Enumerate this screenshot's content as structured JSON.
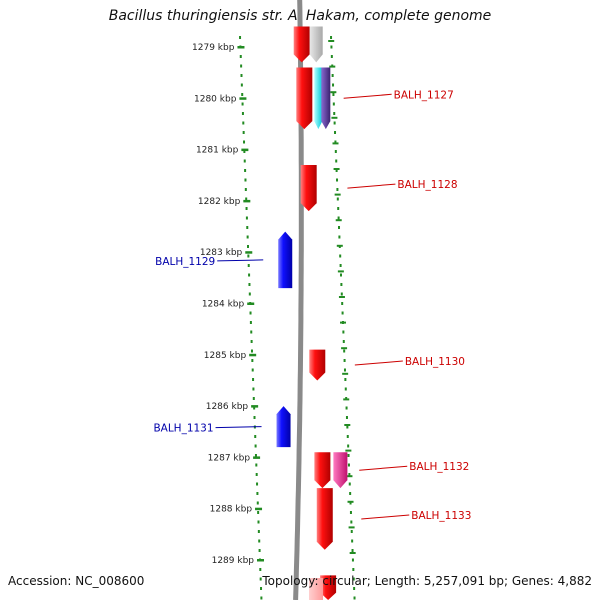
{
  "title": "Bacillus thuringiensis str. Al Hakam, complete genome",
  "footer": {
    "accession": "Accession: NC_008600",
    "stats": "Topology: circular; Length: 5,257,091 bp; Genes: 4,882"
  },
  "colors": {
    "forward_cds": "#ff0000",
    "reverse_cds": "#0000ff",
    "backbone": "#888888",
    "scale_dots": "#228b22",
    "label_forward": "#cc0000",
    "label_reverse": "#0000aa",
    "cyan_feature": "#00e5ee",
    "purple_feature": "#5a3a9a",
    "magenta_feature": "#e6198c",
    "gray_feature": "#c0c0c0"
  },
  "chart_data": {
    "type": "genome_map",
    "unit": "kbp",
    "ticks": [
      1279,
      1280,
      1281,
      1282,
      1283,
      1284,
      1285,
      1286,
      1287,
      1288,
      1289
    ],
    "tick_labels": [
      "1279 kbp",
      "1280 kbp",
      "1281 kbp",
      "1282 kbp",
      "1283 kbp",
      "1284 kbp",
      "1285 kbp",
      "1286 kbp",
      "1287 kbp",
      "1288 kbp",
      "1289 kbp"
    ],
    "genes": [
      {
        "name": "",
        "strand": "+",
        "start": 1278.6,
        "end": 1279.3,
        "color": "red"
      },
      {
        "name": "",
        "strand": "+",
        "start": 1278.6,
        "end": 1279.3,
        "color": "gray"
      },
      {
        "name": "BALH_1127",
        "strand": "+",
        "start": 1279.4,
        "end": 1280.6,
        "color": "red",
        "labeled": true
      },
      {
        "name": "",
        "strand": "+",
        "start": 1279.4,
        "end": 1280.6,
        "color": "cyan"
      },
      {
        "name": "",
        "strand": "+",
        "start": 1279.4,
        "end": 1280.6,
        "color": "purple"
      },
      {
        "name": "BALH_1128",
        "strand": "+",
        "start": 1281.3,
        "end": 1282.2,
        "color": "red",
        "labeled": true
      },
      {
        "name": "BALH_1129",
        "strand": "-",
        "start": 1282.6,
        "end": 1283.7,
        "color": "blue",
        "labeled": true
      },
      {
        "name": "BALH_1130",
        "strand": "+",
        "start": 1284.9,
        "end": 1285.5,
        "color": "red",
        "labeled": true
      },
      {
        "name": "BALH_1131",
        "strand": "-",
        "start": 1286.0,
        "end": 1286.8,
        "color": "blue",
        "labeled": true
      },
      {
        "name": "BALH_1132",
        "strand": "+",
        "start": 1286.9,
        "end": 1287.6,
        "color": "red",
        "labeled": true
      },
      {
        "name": "",
        "strand": "+",
        "start": 1286.9,
        "end": 1287.6,
        "color": "magenta"
      },
      {
        "name": "BALH_1133",
        "strand": "+",
        "start": 1287.6,
        "end": 1288.8,
        "color": "red",
        "labeled": true
      },
      {
        "name": "",
        "strand": "+",
        "start": 1289.3,
        "end": 1289.8,
        "color": "red"
      }
    ]
  }
}
